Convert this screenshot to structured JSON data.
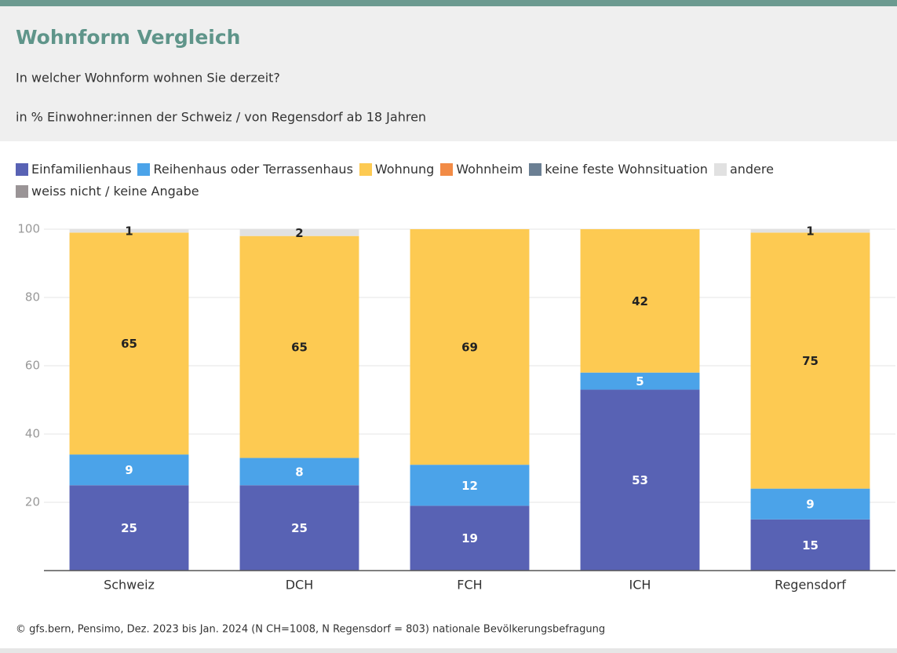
{
  "chart_data": {
    "type": "stacked_bar",
    "title": "Wohnform Vergleich",
    "subtitle": "In welcher Wohnform wohnen Sie derzeit?",
    "unit_note": "in % Einwohner:innen der Schweiz / von Regensdorf ab 18 Jahren",
    "source": "© gfs.bern, Pensimo, Dez. 2023 bis Jan. 2024 (N CH=1008, N Regensdorf = 803) nationale Bevölkerungsbefragung",
    "categories": [
      "Schweiz",
      "DCH",
      "FCH",
      "ICH",
      "Regensdorf"
    ],
    "series": [
      {
        "name": "Einfamilienhaus",
        "color": "#5862b4",
        "values": [
          25,
          25,
          19,
          53,
          15
        ]
      },
      {
        "name": "Reihenhaus oder Terrassenhaus",
        "color": "#4ba3e9",
        "values": [
          9,
          8,
          12,
          5,
          9
        ]
      },
      {
        "name": "Wohnung",
        "color": "#fdca52",
        "values": [
          65,
          65,
          69,
          42,
          75
        ]
      },
      {
        "name": "Wohnheim",
        "color": "#f28b46",
        "values": [
          0,
          0,
          0,
          0,
          0
        ]
      },
      {
        "name": "keine feste Wohnsituation",
        "color": "#6b7f93",
        "values": [
          0,
          0,
          0,
          0,
          0
        ]
      },
      {
        "name": "andere",
        "color": "#e1e1e1",
        "values": [
          1,
          2,
          0,
          0,
          1
        ]
      },
      {
        "name": "weiss nicht / keine Angabe",
        "color": "#9a9496",
        "values": [
          0,
          0,
          0,
          0,
          0
        ]
      }
    ],
    "ylim": [
      0,
      100
    ],
    "yticks": [
      20,
      40,
      60,
      80,
      100
    ],
    "grid": true
  }
}
